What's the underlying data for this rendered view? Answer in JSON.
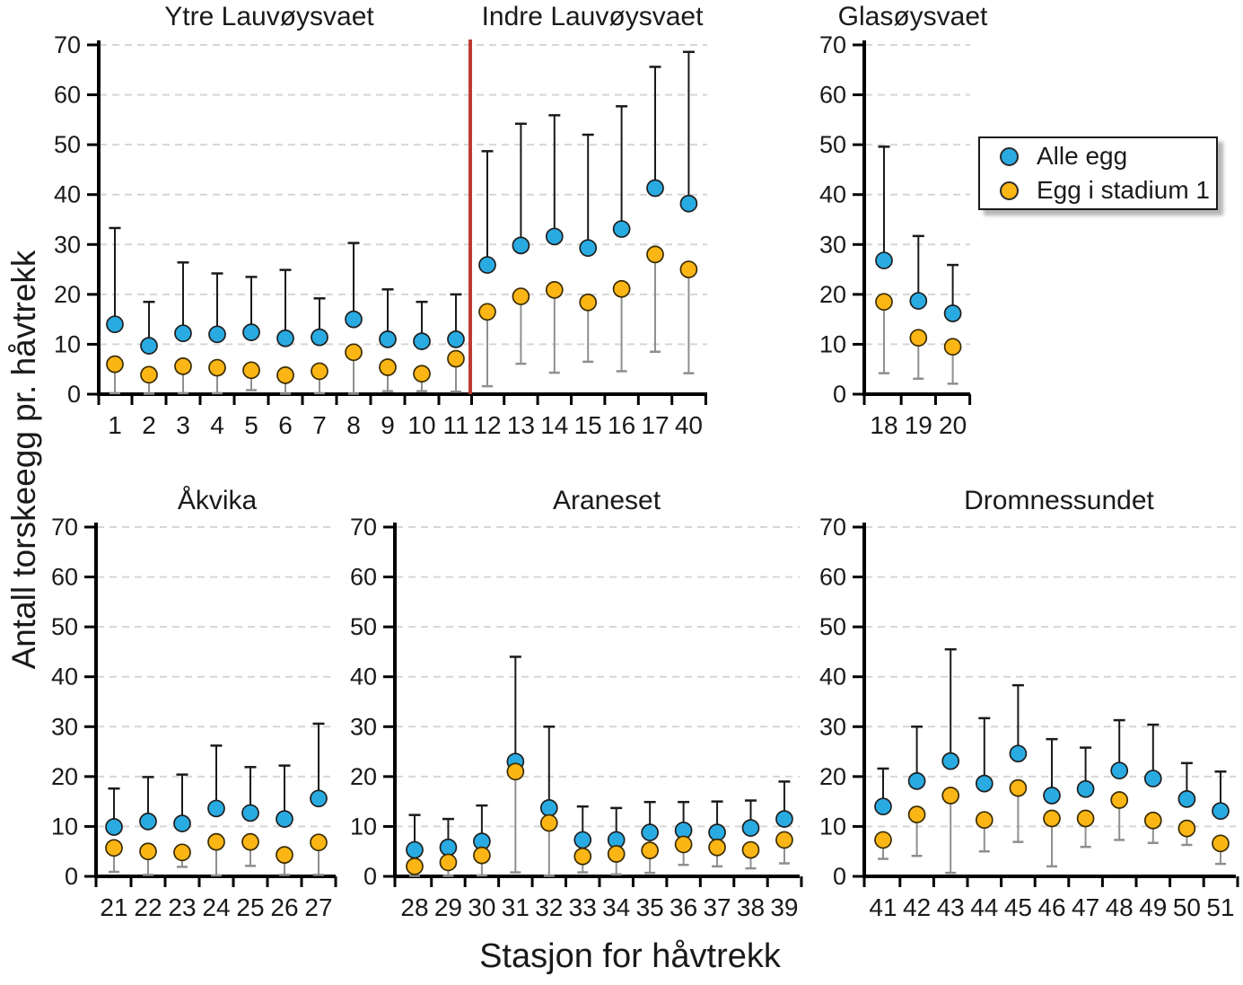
{
  "figure": {
    "background": "#ffffff",
    "accent_colors": {
      "alle_egg": "#29ABE2",
      "stadium1": "#FBB615",
      "divider_red": "#BE3B31",
      "whisker_upper": "#1a1a1a",
      "whisker_lower": "#8f8f8f",
      "gridline": "#d6d6d6"
    }
  },
  "legend": {
    "entries": [
      {
        "name": "Alle egg",
        "color": "#29ABE2"
      },
      {
        "name": "Egg i stadium 1",
        "color": "#FBB615"
      }
    ]
  },
  "chart_data": {
    "type": "scatter",
    "ylabel": "Antall torskeegg pr. håvtrekk",
    "xlabel": "Stasjon for håvtrekk",
    "ylim": [
      0,
      70
    ],
    "yticks": [
      0,
      10,
      20,
      30,
      40,
      50,
      60,
      70
    ],
    "grid": "horizontal-dashed",
    "legend_position": "top-right",
    "series_names": [
      "Alle egg",
      "Egg i stadium 1"
    ],
    "error_bars": "upper whisker on Alle egg (black), lower whisker on Egg i stadium 1 (gray)",
    "divider": {
      "between_panels": [
        "Ytre Lauvøysvaet",
        "Indre Lauvøysvaet"
      ],
      "color": "#BE3B31"
    },
    "panels": [
      {
        "title": "Ytre Lauvøysvaet",
        "stations": [
          1,
          2,
          3,
          4,
          5,
          6,
          7,
          8,
          9,
          10,
          11
        ],
        "alle_egg": [
          14.0,
          9.7,
          12.2,
          12.0,
          12.4,
          11.2,
          11.4,
          15.0,
          11.0,
          10.6,
          11.0
        ],
        "alle_egg_upper": [
          33.3,
          18.5,
          26.4,
          24.2,
          23.5,
          24.9,
          19.2,
          30.3,
          21.0,
          18.5,
          20.0
        ],
        "stadium1": [
          6.0,
          3.9,
          5.6,
          5.3,
          4.8,
          3.8,
          4.6,
          8.4,
          5.4,
          4.1,
          7.1
        ],
        "stadium1_lower": [
          0.2,
          0.1,
          0.2,
          0.2,
          0.8,
          0.1,
          0.2,
          0.1,
          0.6,
          0.6,
          0.5
        ]
      },
      {
        "title": "Indre Lauvøysvaet",
        "stations": [
          12,
          13,
          14,
          15,
          16,
          17,
          40
        ],
        "alle_egg": [
          25.9,
          29.8,
          31.6,
          29.3,
          33.1,
          41.3,
          38.2
        ],
        "alle_egg_upper": [
          48.7,
          54.2,
          55.9,
          52.0,
          57.7,
          65.6,
          68.6
        ],
        "stadium1": [
          16.5,
          19.6,
          20.9,
          18.4,
          21.1,
          28.0,
          25.0
        ],
        "stadium1_lower": [
          1.6,
          6.1,
          4.3,
          6.5,
          4.6,
          8.5,
          4.2
        ]
      },
      {
        "title": "Glasøysvaet",
        "stations": [
          18,
          19,
          20
        ],
        "alle_egg": [
          26.8,
          18.7,
          16.2
        ],
        "alle_egg_upper": [
          49.6,
          31.7,
          25.9
        ],
        "stadium1": [
          18.5,
          11.3,
          9.5
        ],
        "stadium1_lower": [
          4.2,
          3.1,
          2.1
        ]
      },
      {
        "title": "Åkvika",
        "stations": [
          21,
          22,
          23,
          24,
          25,
          26,
          27
        ],
        "alle_egg": [
          9.9,
          11.0,
          10.6,
          13.6,
          12.7,
          11.5,
          15.6
        ],
        "alle_egg_upper": [
          17.6,
          19.9,
          20.4,
          26.2,
          21.9,
          22.2,
          30.6
        ],
        "stadium1": [
          5.7,
          5.0,
          4.8,
          6.9,
          6.9,
          4.3,
          6.8
        ],
        "stadium1_lower": [
          0.9,
          0.3,
          1.9,
          0.2,
          2.1,
          0.3,
          0.3
        ]
      },
      {
        "title": "Araneset",
        "stations": [
          28,
          29,
          30,
          31,
          32,
          33,
          34,
          35,
          36,
          37,
          38,
          39
        ],
        "alle_egg": [
          5.3,
          5.8,
          7.0,
          23.0,
          13.7,
          7.3,
          7.3,
          8.8,
          9.2,
          8.8,
          9.7,
          11.5
        ],
        "alle_egg_upper": [
          12.3,
          11.5,
          14.2,
          44.0,
          30.0,
          14.0,
          13.7,
          14.9,
          14.9,
          15.0,
          15.2,
          19.0
        ],
        "stadium1": [
          2.0,
          2.8,
          4.2,
          21.0,
          10.7,
          4.0,
          4.5,
          5.2,
          6.4,
          5.8,
          5.3,
          7.3
        ],
        "stadium1_lower": [
          0.1,
          0.1,
          0.2,
          0.8,
          0.1,
          0.8,
          0.4,
          0.7,
          2.3,
          2.0,
          1.6,
          2.6
        ]
      },
      {
        "title": "Dromnessundet",
        "stations": [
          41,
          42,
          43,
          44,
          45,
          46,
          47,
          48,
          49,
          50,
          51
        ],
        "alle_egg": [
          14.0,
          19.1,
          23.1,
          18.6,
          24.6,
          16.2,
          17.5,
          21.2,
          19.6,
          15.5,
          13.1
        ],
        "alle_egg_upper": [
          21.6,
          30.0,
          45.5,
          31.7,
          38.3,
          27.5,
          25.8,
          31.3,
          30.4,
          22.7,
          21.0
        ],
        "stadium1": [
          7.3,
          12.4,
          16.2,
          11.3,
          17.7,
          11.6,
          11.6,
          15.3,
          11.2,
          9.6,
          6.6
        ],
        "stadium1_lower": [
          3.5,
          4.1,
          0.7,
          5.0,
          6.9,
          2.0,
          5.9,
          7.3,
          6.7,
          6.3,
          2.5
        ]
      }
    ]
  }
}
